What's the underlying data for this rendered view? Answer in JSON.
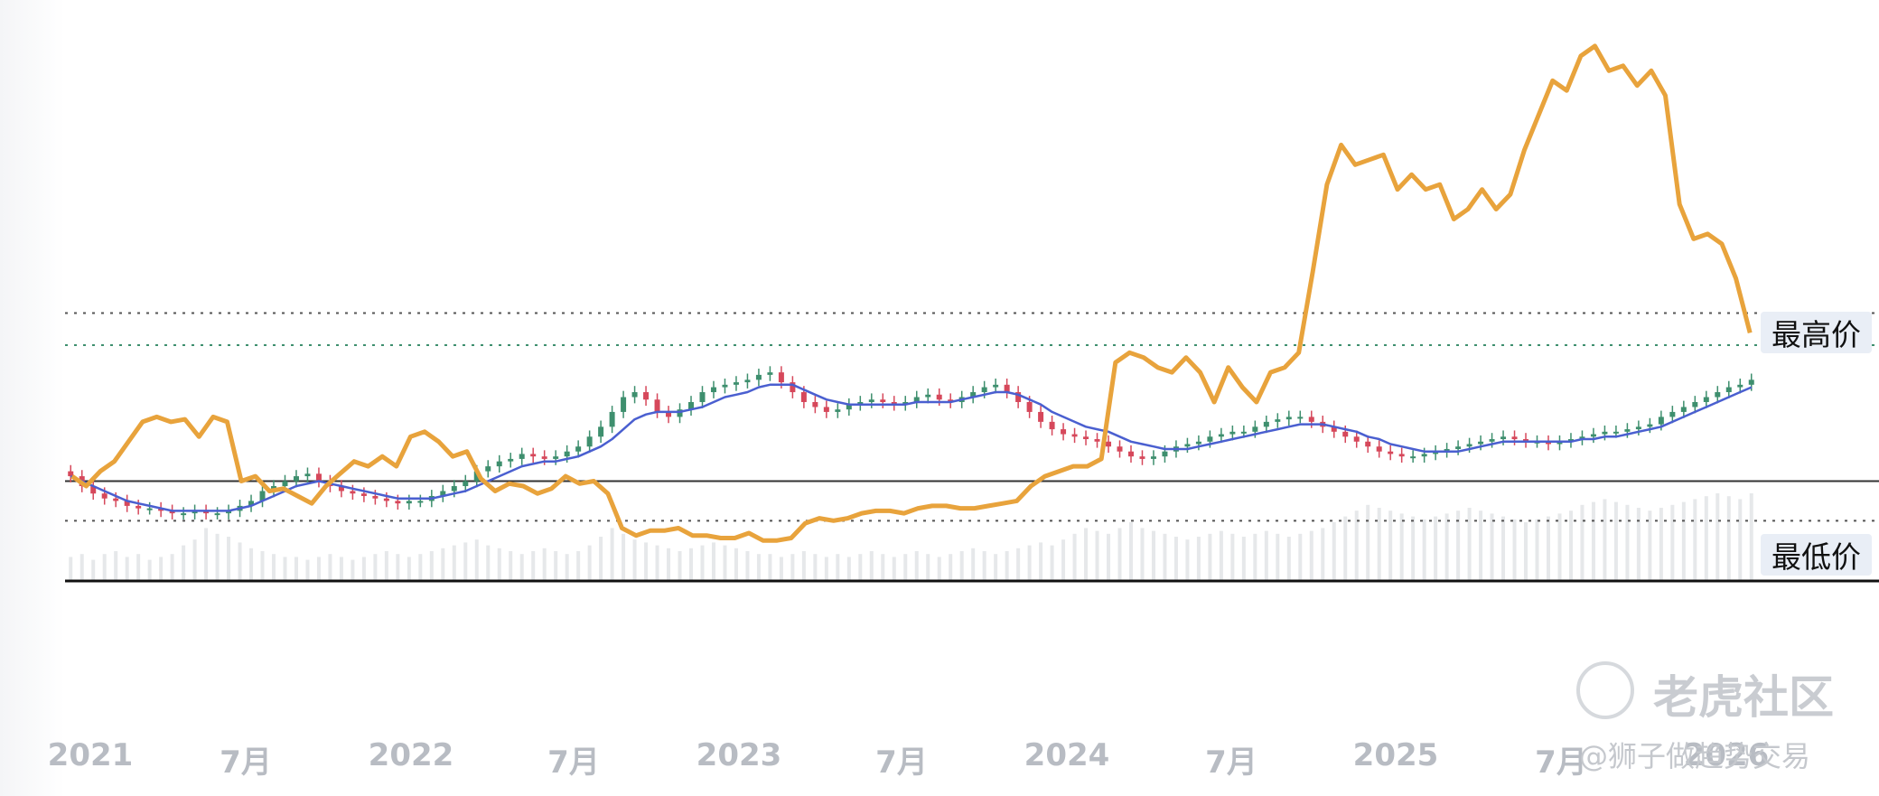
{
  "chart_data": {
    "type": "candlestick+line",
    "x_axis_labels": [
      "2021",
      "7月",
      "2022",
      "7月",
      "2023",
      "7月",
      "2024",
      "7月",
      "2025",
      "7月",
      "2026"
    ],
    "reference_labels": {
      "high": "最高价",
      "low": "最低价"
    },
    "series": [
      {
        "kind": "line",
        "color": "#e8a33c",
        "values": [
          62,
          58,
          64,
          68,
          76,
          84,
          86,
          84,
          85,
          78,
          86,
          84,
          60,
          62,
          56,
          57,
          54,
          51,
          58,
          63,
          68,
          66,
          70,
          66,
          78,
          80,
          76,
          70,
          72,
          61,
          56,
          59,
          58,
          55,
          57,
          62,
          59,
          60,
          55,
          41,
          38,
          40,
          40,
          41,
          38,
          38,
          37,
          37,
          39,
          36,
          36,
          37,
          43,
          45,
          44,
          45,
          47,
          48,
          48,
          47,
          49,
          50,
          50,
          49,
          49,
          50,
          51,
          52,
          58,
          62,
          64,
          66,
          66,
          69,
          108,
          112,
          110,
          106,
          104,
          110,
          104,
          92,
          106,
          98,
          92,
          104,
          106,
          112,
          145,
          180,
          196,
          188,
          190,
          192,
          178,
          184,
          178,
          180,
          166,
          170,
          178,
          170,
          176,
          194,
          208,
          222,
          218,
          232,
          236,
          226,
          228,
          220,
          226,
          216,
          172,
          158,
          160,
          156,
          142,
          120
        ],
        "ylim": [
          20,
          240
        ]
      },
      {
        "kind": "candlestick",
        "up_color": "#3e8f6e",
        "down_color": "#d6485b",
        "close": [
          62,
          58,
          55,
          53,
          52,
          50,
          49,
          49,
          48,
          47,
          47,
          48,
          47,
          47,
          48,
          50,
          52,
          56,
          58,
          60,
          62,
          63,
          60,
          58,
          56,
          55,
          54,
          53,
          52,
          51,
          52,
          52,
          54,
          56,
          58,
          60,
          64,
          66,
          68,
          69,
          71,
          70,
          69,
          70,
          72,
          74,
          78,
          82,
          88,
          94,
          96,
          93,
          88,
          86,
          89,
          92,
          96,
          98,
          99,
          100,
          101,
          103,
          104,
          100,
          96,
          92,
          90,
          88,
          89,
          91,
          92,
          93,
          92,
          91,
          92,
          94,
          95,
          93,
          92,
          94,
          96,
          98,
          99,
          96,
          92,
          88,
          84,
          81,
          79,
          78,
          77,
          76,
          74,
          72,
          70,
          69,
          70,
          72,
          74,
          75,
          76,
          78,
          79,
          80,
          80,
          82,
          84,
          85,
          86,
          86,
          84,
          82,
          80,
          78,
          76,
          74,
          72,
          71,
          70,
          70,
          71,
          72,
          73,
          74,
          75,
          76,
          77,
          78,
          77,
          76,
          76,
          75,
          76,
          77,
          78,
          79,
          80,
          80,
          81,
          82,
          83,
          86,
          88,
          90,
          92,
          94,
          96,
          98,
          99,
          101
        ],
        "ylim": [
          20,
          240
        ]
      },
      {
        "kind": "line",
        "name": "",
        "color": "#4a5fd0",
        "values": [
          62,
          60,
          58,
          56,
          54,
          52,
          51,
          50,
          49,
          48,
          48,
          48,
          48,
          48,
          48,
          49,
          50,
          52,
          54,
          56,
          58,
          59,
          60,
          59,
          58,
          57,
          56,
          55,
          54,
          53,
          53,
          53,
          53,
          54,
          55,
          56,
          58,
          60,
          62,
          64,
          66,
          67,
          68,
          68,
          69,
          70,
          72,
          74,
          77,
          81,
          85,
          87,
          88,
          88,
          88,
          89,
          90,
          92,
          94,
          95,
          96,
          98,
          99,
          99,
          99,
          97,
          95,
          93,
          92,
          91,
          91,
          91,
          91,
          91,
          91,
          92,
          92,
          92,
          92,
          93,
          94,
          95,
          96,
          96,
          95,
          93,
          91,
          88,
          86,
          84,
          82,
          81,
          80,
          78,
          76,
          75,
          74,
          73,
          73,
          73,
          74,
          75,
          76,
          77,
          78,
          79,
          80,
          81,
          82,
          83,
          83,
          83,
          82,
          81,
          80,
          78,
          77,
          75,
          74,
          73,
          72,
          72,
          72,
          72,
          73,
          74,
          75,
          76,
          76,
          76,
          76,
          76,
          76,
          76,
          77,
          77,
          78,
          78,
          79,
          80,
          81,
          82,
          84,
          86,
          88,
          90,
          92,
          94,
          96,
          98
        ],
        "ylim": [
          20,
          240
        ]
      }
    ],
    "volume": [
      8,
      9,
      7,
      9,
      10,
      8,
      9,
      7,
      8,
      9,
      12,
      14,
      18,
      16,
      15,
      13,
      11,
      10,
      9,
      8,
      8,
      7,
      8,
      9,
      8,
      7,
      8,
      9,
      10,
      9,
      8,
      9,
      10,
      11,
      12,
      13,
      14,
      12,
      11,
      10,
      9,
      10,
      11,
      10,
      9,
      10,
      12,
      15,
      18,
      16,
      14,
      13,
      12,
      11,
      10,
      11,
      12,
      13,
      12,
      11,
      10,
      9,
      9,
      8,
      9,
      10,
      9,
      8,
      9,
      8,
      9,
      10,
      9,
      8,
      9,
      10,
      9,
      8,
      9,
      10,
      11,
      10,
      9,
      10,
      11,
      12,
      13,
      12,
      14,
      16,
      18,
      17,
      16,
      18,
      20,
      18,
      17,
      16,
      15,
      14,
      15,
      16,
      17,
      16,
      15,
      16,
      17,
      16,
      15,
      16,
      17,
      18,
      20,
      22,
      24,
      26,
      25,
      24,
      23,
      22,
      21,
      22,
      23,
      24,
      25,
      24,
      23,
      22,
      21,
      20,
      21,
      22,
      23,
      24,
      26,
      27,
      28,
      27,
      26,
      25,
      24,
      25,
      26,
      27,
      28,
      29,
      30,
      29,
      28,
      30
    ],
    "reference_lines": {
      "high": 128,
      "mid": 115,
      "base": 60,
      "low": 44
    },
    "watermark": {
      "brand": "老虎社区",
      "user": "@狮子做趋势交易"
    }
  }
}
